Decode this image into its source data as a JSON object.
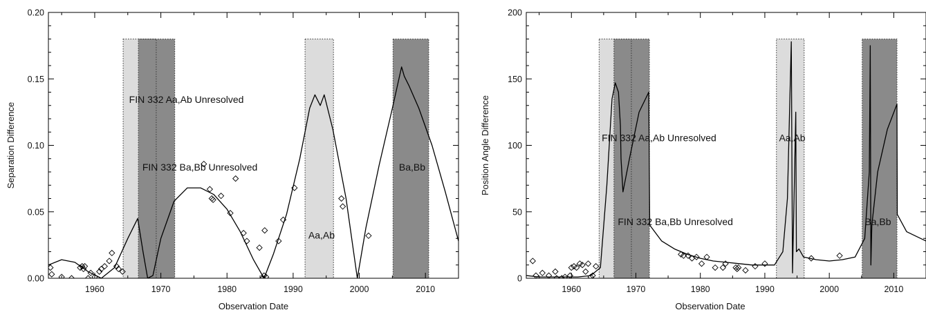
{
  "chart_data": [
    {
      "type": "line",
      "xlabel": "Observation Date",
      "ylabel": "Separation Difference",
      "xlim": [
        1953,
        2015
      ],
      "ylim": [
        0.0,
        0.2
      ],
      "x_ticks": [
        1960,
        1970,
        1980,
        1990,
        2000,
        2010
      ],
      "x_tick_labels": [
        "1960",
        "1970",
        "1980",
        "1990",
        "2000",
        "2010"
      ],
      "y_ticks": [
        0.0,
        0.05,
        0.1,
        0.15,
        0.2
      ],
      "y_tick_labels": [
        "0.00",
        "0.05",
        "0.10",
        "0.15",
        "0.20"
      ],
      "shaded_regions": [
        {
          "x0": 1964.3,
          "x1": 1969.3,
          "shade": "light",
          "fill": "#dcdcdc"
        },
        {
          "x0": 1966.6,
          "x1": 1972.1,
          "shade": "dark",
          "fill": "#8a8a8a"
        },
        {
          "x0": 1991.8,
          "x1": 1996.1,
          "shade": "light",
          "fill": "#dcdcdc"
        },
        {
          "x0": 2005.1,
          "x1": 2010.5,
          "shade": "dark",
          "fill": "#8a8a8a"
        }
      ],
      "region_top": 0.18,
      "annotations": [
        {
          "text": "FIN 332 Aa,Ab Unresolved",
          "x": 1965.2,
          "y": 0.132
        },
        {
          "text": "FIN 332 Ba,Bb Unresolved",
          "x": 1967.2,
          "y": 0.081
        },
        {
          "text": "Aa,Ab",
          "x": 1992.3,
          "y": 0.03
        },
        {
          "text": "Ba,Bb",
          "x": 2006.0,
          "y": 0.081
        }
      ],
      "curve": {
        "x": [
          1953,
          1955,
          1957,
          1959,
          1961,
          1963,
          1965,
          1966.5,
          1967.3,
          1968,
          1968.8,
          1970,
          1972,
          1974,
          1976,
          1978,
          1980,
          1982,
          1984,
          1985.6,
          1987,
          1989,
          1991,
          1992.5,
          1993.3,
          1994.1,
          1994.7,
          1996,
          1998,
          1999.7,
          2001,
          2003,
          2005,
          2006.4,
          2006.8,
          2007.5,
          2009,
          2011,
          2013,
          2015
        ],
        "y": [
          0.01,
          0.014,
          0.012,
          0.005,
          0.0,
          0.008,
          0.03,
          0.045,
          0.02,
          0.0,
          0.002,
          0.03,
          0.058,
          0.068,
          0.068,
          0.063,
          0.052,
          0.035,
          0.014,
          0.0,
          0.018,
          0.048,
          0.09,
          0.128,
          0.138,
          0.13,
          0.138,
          0.112,
          0.06,
          0.0,
          0.038,
          0.085,
          0.128,
          0.159,
          0.152,
          0.145,
          0.128,
          0.1,
          0.065,
          0.028
        ]
      },
      "points": {
        "x": [
          1953.3,
          1953.5,
          1955.0,
          1956.5,
          1957.8,
          1958.1,
          1958.3,
          1958.5,
          1959.0,
          1959.4,
          1960.0,
          1960.7,
          1961.0,
          1961.5,
          1962.2,
          1962.6,
          1963.3,
          1963.6,
          1964.2,
          1976.5,
          1977.4,
          1977.7,
          1977.9,
          1979.1,
          1980.5,
          1981.3,
          1982.5,
          1983.0,
          1984.9,
          1985.4,
          1985.6,
          1985.7,
          1985.9,
          1987.8,
          1988.5,
          1990.2,
          1997.3,
          1997.5,
          2001.4
        ],
        "y": [
          0.008,
          0.003,
          0.001,
          0.0,
          0.008,
          0.009,
          0.007,
          0.009,
          0.0,
          0.004,
          0.001,
          0.005,
          0.007,
          0.009,
          0.013,
          0.019,
          0.009,
          0.007,
          0.005,
          0.086,
          0.067,
          0.06,
          0.059,
          0.062,
          0.049,
          0.075,
          0.034,
          0.028,
          0.023,
          0.0,
          0.002,
          0.036,
          0.001,
          0.028,
          0.044,
          0.068,
          0.06,
          0.054,
          0.032
        ]
      }
    },
    {
      "type": "line",
      "xlabel": "Observation Date",
      "ylabel": "Position Angle Difference",
      "xlim": [
        1953,
        2015
      ],
      "ylim": [
        0,
        200
      ],
      "x_ticks": [
        1960,
        1970,
        1980,
        1990,
        2000,
        2010
      ],
      "x_tick_labels": [
        "1960",
        "1970",
        "1980",
        "1990",
        "2000",
        "2010"
      ],
      "y_ticks": [
        0,
        50,
        100,
        150,
        200
      ],
      "y_tick_labels": [
        "0",
        "50",
        "100",
        "150",
        "200"
      ],
      "shaded_regions": [
        {
          "x0": 1964.3,
          "x1": 1969.3,
          "shade": "light",
          "fill": "#dcdcdc"
        },
        {
          "x0": 1966.6,
          "x1": 1972.1,
          "shade": "dark",
          "fill": "#8a8a8a"
        },
        {
          "x0": 1991.8,
          "x1": 1996.1,
          "shade": "light",
          "fill": "#dcdcdc"
        },
        {
          "x0": 2005.1,
          "x1": 2010.5,
          "shade": "dark",
          "fill": "#8a8a8a"
        }
      ],
      "region_top": 180,
      "annotations": [
        {
          "text": "FIN 332 Aa,Ab Unresolved",
          "x": 1964.7,
          "y": 103
        },
        {
          "text": "FIN 332 Ba,Bb Unresolved",
          "x": 1967.2,
          "y": 40
        },
        {
          "text": "Aa,Ab",
          "x": 1992.2,
          "y": 103
        },
        {
          "text": "Ba,Bb",
          "x": 2005.5,
          "y": 40
        }
      ],
      "curve": {
        "x": [
          1953,
          1955,
          1958,
          1961,
          1963,
          1964.5,
          1965.5,
          1966.3,
          1966.8,
          1967.3,
          1967.6,
          1967.7,
          1968.0,
          1969.0,
          1970.5,
          1972.0,
          1972.15,
          1974,
          1976,
          1978,
          1980,
          1982,
          1984,
          1986,
          1988,
          1990,
          1991.5,
          1992.8,
          1993.5,
          1994.1,
          1994.3,
          1994.8,
          1994.9,
          1995.3,
          1996,
          1998,
          2000,
          2002,
          2004,
          2005.5,
          2006.2,
          2006.35,
          2006.45,
          2006.6,
          2007.5,
          2009,
          2010.5,
          2010.55,
          2012,
          2015
        ],
        "y": [
          2,
          1,
          1,
          1,
          2,
          8,
          70,
          135,
          147,
          140,
          115,
          90,
          65,
          90,
          125,
          140,
          40,
          28,
          22,
          18,
          15,
          13,
          12,
          11,
          10,
          10,
          10,
          20,
          60,
          178,
          4,
          125,
          20,
          22,
          16,
          14,
          13,
          14,
          16,
          30,
          80,
          175,
          10,
          40,
          80,
          112,
          131,
          48,
          35,
          28
        ]
      },
      "points": {
        "x": [
          1954.0,
          1954.5,
          1955.5,
          1956.5,
          1957.5,
          1957.7,
          1958.5,
          1959.0,
          1959.8,
          1960.0,
          1960.4,
          1960.8,
          1961.3,
          1961.7,
          1962.2,
          1962.6,
          1963.0,
          1963.3,
          1963.8,
          1977.0,
          1977.4,
          1978.1,
          1978.7,
          1979.4,
          1980.2,
          1981.0,
          1982.3,
          1983.5,
          1983.9,
          1985.5,
          1985.7,
          1985.9,
          1987.0,
          1988.5,
          1990.0,
          1997.2,
          2001.6
        ],
        "y": [
          13,
          2,
          4,
          2,
          5,
          0,
          0,
          1,
          2,
          8,
          9,
          8,
          11,
          10,
          5,
          11,
          1,
          2,
          9,
          18,
          17,
          17,
          15,
          16,
          11,
          16,
          8,
          8,
          11,
          8,
          7,
          8,
          6,
          9,
          11,
          15,
          17
        ]
      }
    }
  ]
}
